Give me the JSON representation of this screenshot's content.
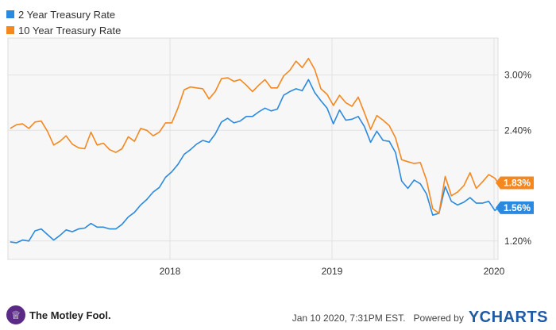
{
  "legend": {
    "items": [
      {
        "label": "2 Year Treasury Rate",
        "color": "#2b8ae0"
      },
      {
        "label": "10 Year Treasury Rate",
        "color": "#f5871f"
      }
    ]
  },
  "footer": {
    "brand": "The Motley Fool.",
    "timestamp": "Jan 10 2020, 7:31PM EST.",
    "powered_by": "Powered by",
    "ycharts": "YCHARTS"
  },
  "chart_data": {
    "type": "line",
    "title": "",
    "xlabel": "",
    "ylabel": "",
    "x_range": [
      "2017-01-01",
      "2020-01-10"
    ],
    "ylim": [
      1.0,
      3.4
    ],
    "grid": true,
    "legend_placement": "top-left",
    "x_ticks": [
      {
        "value": "2018-01-01",
        "label": "2018"
      },
      {
        "value": "2019-01-01",
        "label": "2019"
      },
      {
        "value": "2020-01-01",
        "label": "2020"
      }
    ],
    "y_ticks": [
      {
        "value": 1.2,
        "label": "1.20%"
      },
      {
        "value": 2.4,
        "label": "2.40%"
      },
      {
        "value": 3.0,
        "label": "3.00%"
      }
    ],
    "series": [
      {
        "name": "2 Year Treasury Rate",
        "color": "#2b8ae0",
        "last_label": "1.56%",
        "points": [
          [
            "2017-01-06",
            1.19
          ],
          [
            "2017-01-20",
            1.18
          ],
          [
            "2017-02-03",
            1.21
          ],
          [
            "2017-02-17",
            1.2
          ],
          [
            "2017-03-03",
            1.31
          ],
          [
            "2017-03-17",
            1.33
          ],
          [
            "2017-03-31",
            1.27
          ],
          [
            "2017-04-14",
            1.21
          ],
          [
            "2017-04-28",
            1.26
          ],
          [
            "2017-05-12",
            1.32
          ],
          [
            "2017-05-26",
            1.3
          ],
          [
            "2017-06-09",
            1.33
          ],
          [
            "2017-06-23",
            1.34
          ],
          [
            "2017-07-07",
            1.39
          ],
          [
            "2017-07-21",
            1.35
          ],
          [
            "2017-08-04",
            1.35
          ],
          [
            "2017-08-18",
            1.33
          ],
          [
            "2017-09-01",
            1.33
          ],
          [
            "2017-09-15",
            1.38
          ],
          [
            "2017-09-29",
            1.46
          ],
          [
            "2017-10-13",
            1.51
          ],
          [
            "2017-10-27",
            1.59
          ],
          [
            "2017-11-10",
            1.65
          ],
          [
            "2017-11-24",
            1.73
          ],
          [
            "2017-12-08",
            1.78
          ],
          [
            "2017-12-22",
            1.89
          ],
          [
            "2018-01-05",
            1.95
          ],
          [
            "2018-01-19",
            2.03
          ],
          [
            "2018-02-02",
            2.14
          ],
          [
            "2018-02-16",
            2.19
          ],
          [
            "2018-03-02",
            2.25
          ],
          [
            "2018-03-16",
            2.29
          ],
          [
            "2018-03-30",
            2.27
          ],
          [
            "2018-04-13",
            2.36
          ],
          [
            "2018-04-27",
            2.49
          ],
          [
            "2018-05-11",
            2.53
          ],
          [
            "2018-05-25",
            2.48
          ],
          [
            "2018-06-08",
            2.5
          ],
          [
            "2018-06-22",
            2.55
          ],
          [
            "2018-07-06",
            2.55
          ],
          [
            "2018-07-20",
            2.6
          ],
          [
            "2018-08-03",
            2.64
          ],
          [
            "2018-08-17",
            2.61
          ],
          [
            "2018-08-31",
            2.63
          ],
          [
            "2018-09-14",
            2.78
          ],
          [
            "2018-09-28",
            2.82
          ],
          [
            "2018-10-12",
            2.85
          ],
          [
            "2018-10-26",
            2.83
          ],
          [
            "2018-11-09",
            2.95
          ],
          [
            "2018-11-23",
            2.81
          ],
          [
            "2018-12-07",
            2.72
          ],
          [
            "2018-12-21",
            2.64
          ],
          [
            "2019-01-04",
            2.47
          ],
          [
            "2019-01-18",
            2.62
          ],
          [
            "2019-02-01",
            2.51
          ],
          [
            "2019-02-15",
            2.52
          ],
          [
            "2019-03-01",
            2.55
          ],
          [
            "2019-03-15",
            2.44
          ],
          [
            "2019-03-29",
            2.27
          ],
          [
            "2019-04-12",
            2.39
          ],
          [
            "2019-04-26",
            2.29
          ],
          [
            "2019-05-10",
            2.28
          ],
          [
            "2019-05-24",
            2.16
          ],
          [
            "2019-06-07",
            1.85
          ],
          [
            "2019-06-21",
            1.77
          ],
          [
            "2019-07-05",
            1.86
          ],
          [
            "2019-07-19",
            1.82
          ],
          [
            "2019-08-02",
            1.71
          ],
          [
            "2019-08-16",
            1.48
          ],
          [
            "2019-08-30",
            1.5
          ],
          [
            "2019-09-13",
            1.79
          ],
          [
            "2019-09-27",
            1.63
          ],
          [
            "2019-10-11",
            1.59
          ],
          [
            "2019-10-25",
            1.62
          ],
          [
            "2019-11-08",
            1.67
          ],
          [
            "2019-11-22",
            1.61
          ],
          [
            "2019-12-06",
            1.61
          ],
          [
            "2019-12-20",
            1.63
          ],
          [
            "2020-01-03",
            1.53
          ],
          [
            "2020-01-10",
            1.56
          ]
        ]
      },
      {
        "name": "10 Year Treasury Rate",
        "color": "#f5871f",
        "last_label": "1.83%",
        "points": [
          [
            "2017-01-06",
            2.42
          ],
          [
            "2017-01-20",
            2.46
          ],
          [
            "2017-02-03",
            2.47
          ],
          [
            "2017-02-17",
            2.42
          ],
          [
            "2017-03-03",
            2.49
          ],
          [
            "2017-03-17",
            2.5
          ],
          [
            "2017-03-31",
            2.39
          ],
          [
            "2017-04-14",
            2.24
          ],
          [
            "2017-04-28",
            2.28
          ],
          [
            "2017-05-12",
            2.34
          ],
          [
            "2017-05-26",
            2.25
          ],
          [
            "2017-06-09",
            2.21
          ],
          [
            "2017-06-23",
            2.2
          ],
          [
            "2017-07-07",
            2.38
          ],
          [
            "2017-07-21",
            2.24
          ],
          [
            "2017-08-04",
            2.26
          ],
          [
            "2017-08-18",
            2.19
          ],
          [
            "2017-09-01",
            2.16
          ],
          [
            "2017-09-15",
            2.2
          ],
          [
            "2017-09-29",
            2.33
          ],
          [
            "2017-10-13",
            2.28
          ],
          [
            "2017-10-27",
            2.42
          ],
          [
            "2017-11-10",
            2.4
          ],
          [
            "2017-11-24",
            2.34
          ],
          [
            "2017-12-08",
            2.38
          ],
          [
            "2017-12-22",
            2.48
          ],
          [
            "2018-01-05",
            2.48
          ],
          [
            "2018-01-19",
            2.64
          ],
          [
            "2018-02-02",
            2.84
          ],
          [
            "2018-02-16",
            2.87
          ],
          [
            "2018-03-02",
            2.86
          ],
          [
            "2018-03-16",
            2.85
          ],
          [
            "2018-03-30",
            2.74
          ],
          [
            "2018-04-13",
            2.82
          ],
          [
            "2018-04-27",
            2.96
          ],
          [
            "2018-05-11",
            2.97
          ],
          [
            "2018-05-25",
            2.93
          ],
          [
            "2018-06-08",
            2.95
          ],
          [
            "2018-06-22",
            2.89
          ],
          [
            "2018-07-06",
            2.82
          ],
          [
            "2018-07-20",
            2.89
          ],
          [
            "2018-08-03",
            2.95
          ],
          [
            "2018-08-17",
            2.86
          ],
          [
            "2018-08-31",
            2.86
          ],
          [
            "2018-09-14",
            2.99
          ],
          [
            "2018-09-28",
            3.05
          ],
          [
            "2018-10-12",
            3.15
          ],
          [
            "2018-10-26",
            3.08
          ],
          [
            "2018-11-09",
            3.18
          ],
          [
            "2018-11-23",
            3.06
          ],
          [
            "2018-12-07",
            2.85
          ],
          [
            "2018-12-21",
            2.79
          ],
          [
            "2019-01-04",
            2.67
          ],
          [
            "2019-01-18",
            2.78
          ],
          [
            "2019-02-01",
            2.7
          ],
          [
            "2019-02-15",
            2.66
          ],
          [
            "2019-03-01",
            2.76
          ],
          [
            "2019-03-15",
            2.59
          ],
          [
            "2019-03-29",
            2.41
          ],
          [
            "2019-04-12",
            2.56
          ],
          [
            "2019-04-26",
            2.51
          ],
          [
            "2019-05-10",
            2.45
          ],
          [
            "2019-05-24",
            2.32
          ],
          [
            "2019-06-07",
            2.08
          ],
          [
            "2019-06-21",
            2.06
          ],
          [
            "2019-07-05",
            2.04
          ],
          [
            "2019-07-19",
            2.05
          ],
          [
            "2019-08-02",
            1.86
          ],
          [
            "2019-08-16",
            1.55
          ],
          [
            "2019-08-30",
            1.5
          ],
          [
            "2019-09-13",
            1.9
          ],
          [
            "2019-09-27",
            1.69
          ],
          [
            "2019-10-11",
            1.73
          ],
          [
            "2019-10-25",
            1.8
          ],
          [
            "2019-11-08",
            1.94
          ],
          [
            "2019-11-22",
            1.77
          ],
          [
            "2019-12-06",
            1.84
          ],
          [
            "2019-12-20",
            1.92
          ],
          [
            "2020-01-03",
            1.88
          ],
          [
            "2020-01-10",
            1.83
          ]
        ]
      }
    ]
  }
}
